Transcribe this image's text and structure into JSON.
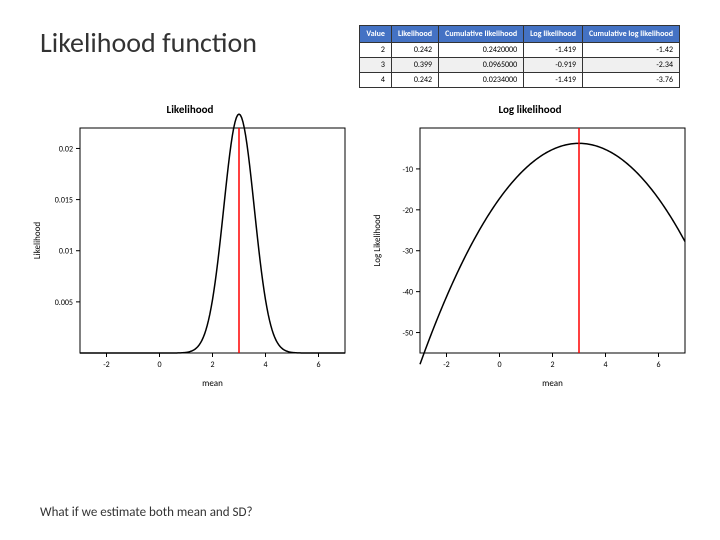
{
  "title": "Likelihood function",
  "table": {
    "header_bg": "#4472c4",
    "header_fg": "#ffffff",
    "columns": [
      "Value",
      "Likelihood",
      "Cumulative likelihood",
      "Log likelihood",
      "Cumulative log likelihood"
    ],
    "rows": [
      [
        "2",
        "0.242",
        "0.2420000",
        "-1.419",
        "-1.42"
      ],
      [
        "3",
        "0.399",
        "0.0965000",
        "-0.919",
        "-2.34"
      ],
      [
        "4",
        "0.242",
        "0.0234000",
        "-1.419",
        "-3.76"
      ]
    ]
  },
  "lik_chart": {
    "type": "line",
    "title": "Likelihood",
    "xlabel": "mean",
    "ylabel": "Likelihood",
    "xlim": [
      -3,
      7
    ],
    "ylim": [
      0,
      0.022
    ],
    "xticks": [
      -2,
      0,
      2,
      4,
      6
    ],
    "yticks": [
      0.005,
      0.01,
      0.015,
      0.02
    ],
    "line_color": "#000000",
    "vline_x": 3,
    "vline_color": "#ff0000",
    "bg_color": "#ffffff",
    "border_color": "#000000",
    "title_fontsize": 11,
    "label_fontsize": 9,
    "tick_fontsize": 8
  },
  "loglik_chart": {
    "type": "line",
    "title": "Log likelihood",
    "xlabel": "mean",
    "ylabel": "Log Likelihood",
    "xlim": [
      -3,
      7
    ],
    "ylim": [
      -55,
      0
    ],
    "xticks": [
      -2,
      0,
      2,
      4,
      6
    ],
    "yticks": [
      -50,
      -40,
      -30,
      -20,
      -10
    ],
    "line_color": "#000000",
    "vline_x": 3,
    "vline_color": "#ff0000",
    "bg_color": "#ffffff",
    "border_color": "#000000",
    "title_fontsize": 11,
    "label_fontsize": 9,
    "tick_fontsize": 8
  },
  "bottom_text": "What if we estimate both mean and SD?"
}
